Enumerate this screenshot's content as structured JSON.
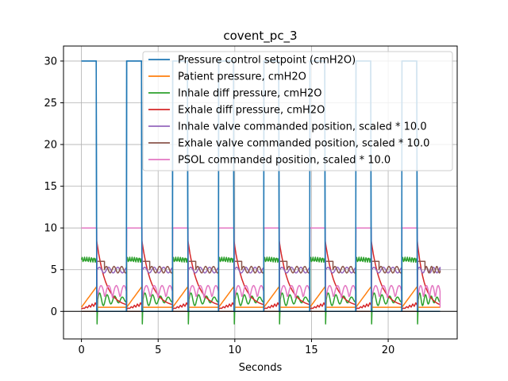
{
  "chart_data": {
    "type": "line",
    "title": "covent_pc_3",
    "xlabel": "Seconds",
    "ylabel": "",
    "xlim": [
      -1.17,
      24.5
    ],
    "ylim": [
      -3.3,
      31.8
    ],
    "xticks": [
      0,
      5,
      10,
      15,
      20
    ],
    "yticks": [
      0,
      5,
      10,
      15,
      20,
      25,
      30
    ],
    "grid": true,
    "zero_line": true,
    "legend_position": "upper right",
    "cycle_starts": [
      0,
      2.95,
      5.95,
      8.95,
      11.9,
      14.9,
      17.9,
      20.9
    ],
    "inhale_duration": 1.0,
    "breath_period": 3.0,
    "x_end": 23.4,
    "series": [
      {
        "name": "Pressure control setpoint (cmH2O)",
        "color": "#1f77b4",
        "inhale_value": 30,
        "exhale_value": 0
      },
      {
        "name": "Patient pressure, cmH2O",
        "color": "#ff7f0e",
        "inhale_range": [
          0.5,
          3.0
        ],
        "exhale_value": 0.5
      },
      {
        "name": "Inhale diff pressure, cmH2O",
        "color": "#2ca02c",
        "inhale_value": 6.2,
        "exhale_range": [
          0.5,
          2.4
        ],
        "spike_min": -1.5
      },
      {
        "name": "Exhale diff pressure, cmH2O",
        "color": "#d62728",
        "inhale_range": [
          0.2,
          1.0
        ],
        "exhale_range": [
          8.4,
          0.5
        ]
      },
      {
        "name": "Inhale valve commanded position, scaled * 10.0",
        "color": "#9467bd",
        "inhale_value": 0,
        "exhale_range": [
          4.6,
          5.3
        ]
      },
      {
        "name": "Exhale valve commanded position, scaled * 10.0",
        "color": "#8c564b",
        "inhale_value": 0,
        "exhale_range": [
          4.6,
          6.0
        ]
      },
      {
        "name": "PSOL commanded position, scaled * 10.0",
        "color": "#e377c2",
        "inhale_value": 10,
        "exhale_range": [
          0.3,
          3.3
        ]
      }
    ]
  }
}
